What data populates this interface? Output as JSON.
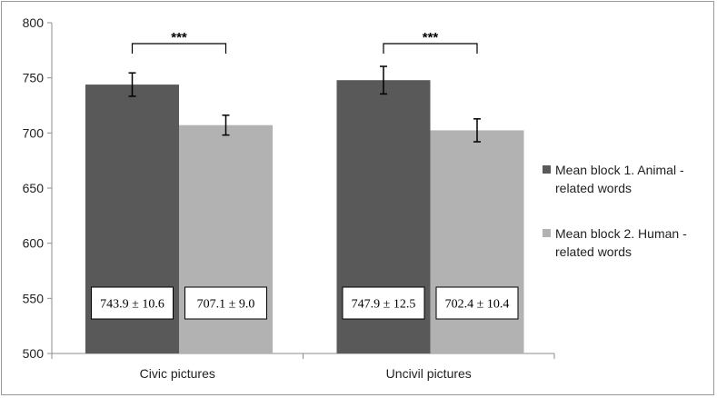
{
  "chart_data": {
    "type": "bar",
    "title": "",
    "xlabel": "",
    "ylabel": "",
    "ylim": [
      500,
      800
    ],
    "yticks": [
      500,
      550,
      600,
      650,
      700,
      750,
      800
    ],
    "grid": false,
    "legend_position": "right",
    "categories": [
      "Civic pictures",
      "Uncivil pictures"
    ],
    "series": [
      {
        "name": "Mean block 1. Animal - related words",
        "legend_lines": [
          "Mean block 1. Animal -",
          "related words"
        ],
        "color": "#595959",
        "values": [
          743.9,
          747.9
        ],
        "errors": [
          10.6,
          12.5
        ],
        "labels": [
          "743.9 ± 10.6",
          "747.9 ± 12.5"
        ]
      },
      {
        "name": "Mean block 2. Human - related words",
        "legend_lines": [
          "Mean block 2. Human -",
          "related words"
        ],
        "color": "#b2b2b2",
        "values": [
          707.1,
          702.4
        ],
        "errors": [
          9.0,
          10.4
        ],
        "labels": [
          "707.1 ± 9.0",
          "702.4 ± 10.4"
        ]
      }
    ],
    "annotations": [
      {
        "category": "Civic pictures",
        "text": "***"
      },
      {
        "category": "Uncivil pictures",
        "text": "***"
      }
    ]
  }
}
